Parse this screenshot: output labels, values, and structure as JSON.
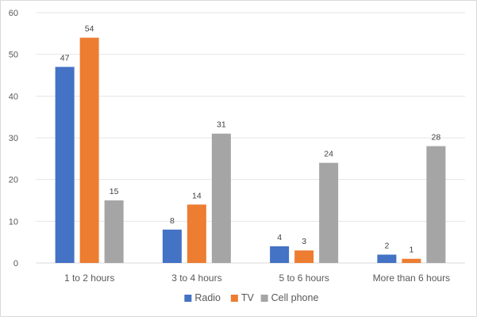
{
  "chart_data": {
    "type": "bar",
    "title": "",
    "xlabel": "",
    "ylabel": "",
    "categories": [
      "1 to 2 hours",
      "3 to 4 hours",
      "5 to 6 hours",
      "More than 6 hours"
    ],
    "series": [
      {
        "name": "Radio",
        "color": "#4472c4",
        "values": [
          47,
          8,
          4,
          2
        ]
      },
      {
        "name": "TV",
        "color": "#ed7d31",
        "values": [
          54,
          14,
          3,
          1
        ]
      },
      {
        "name": "Cell phone",
        "color": "#a5a5a5",
        "values": [
          15,
          31,
          24,
          28
        ]
      }
    ],
    "ylim": [
      0,
      60
    ],
    "yticks": [
      0,
      10,
      20,
      30,
      40,
      50,
      60
    ],
    "grid": true,
    "data_labels": true,
    "legend_position": "bottom"
  }
}
